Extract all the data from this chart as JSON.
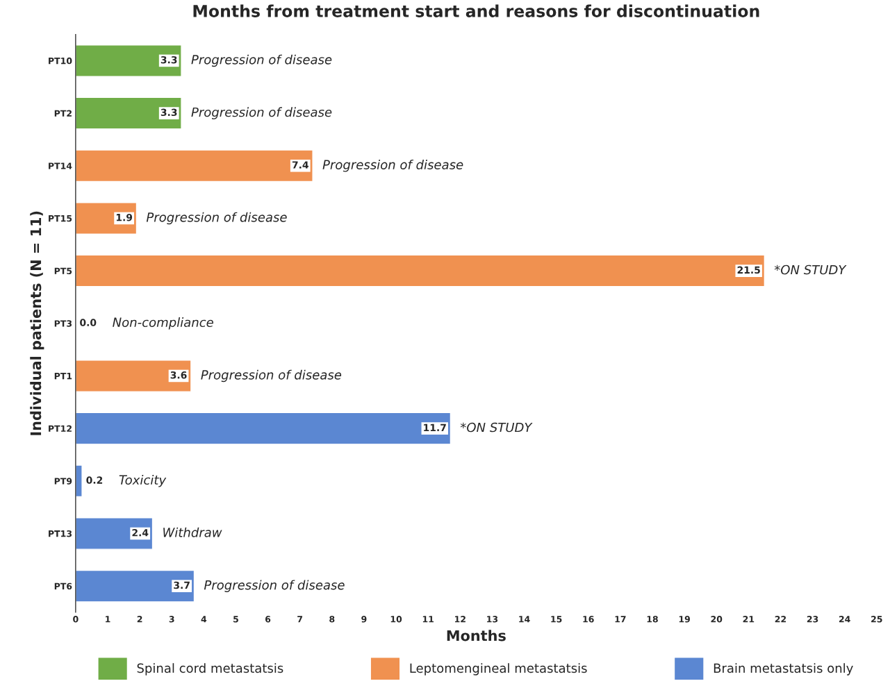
{
  "chart_data": {
    "type": "bar",
    "orientation": "horizontal",
    "title": "Months from treatment start and reasons for discontinuation",
    "xlabel": "Months",
    "ylabel": "Individual patients (N = 11)",
    "categories": [
      "PT10",
      "PT2",
      "PT14",
      "PT15",
      "PT5",
      "PT3",
      "PT1",
      "PT12",
      "PT9",
      "PT13",
      "PT6"
    ],
    "series": [
      {
        "name": "Spinal cord metastatsis",
        "color": "#70ad47",
        "values": [
          3.3,
          3.3,
          null,
          null,
          null,
          null,
          null,
          null,
          null,
          null,
          null
        ],
        "value_labels": [
          "3.3",
          "3.3",
          null,
          null,
          null,
          null,
          null,
          null,
          null,
          null,
          null
        ]
      },
      {
        "name": "Leptomengineal metastatsis",
        "color": "#f09150",
        "values": [
          null,
          null,
          7.4,
          1.9,
          21.5,
          0.0,
          3.6,
          null,
          null,
          null,
          null
        ],
        "value_labels": [
          null,
          null,
          "7.4",
          "1.9",
          "21.5",
          "0.0",
          "3.6",
          null,
          null,
          null,
          null
        ]
      },
      {
        "name": "Brain metastatsis only",
        "color": "#5b87d2",
        "values": [
          null,
          null,
          null,
          null,
          null,
          null,
          null,
          11.7,
          0.2,
          2.4,
          3.7
        ],
        "value_labels": [
          null,
          null,
          null,
          null,
          null,
          null,
          null,
          "11.7",
          "0.2",
          "2.4",
          "3.7"
        ]
      }
    ],
    "annotations": [
      {
        "text": "Progression of disease",
        "x": 3.3,
        "y": "PT10"
      },
      {
        "text": "Progression of disease",
        "x": 3.3,
        "y": "PT2"
      },
      {
        "text": "Progression of disease",
        "x": 7.4,
        "y": "PT14"
      },
      {
        "text": "Progression of disease",
        "x": 1.9,
        "y": "PT15"
      },
      {
        "text": "*ON STUDY",
        "x": 21.5,
        "y": "PT5"
      },
      {
        "text": "Non-compliance",
        "x": 0.0,
        "y": "PT3"
      },
      {
        "text": "Progression of disease",
        "x": 3.6,
        "y": "PT1"
      },
      {
        "text": "*ON STUDY",
        "x": 11.7,
        "y": "PT12"
      },
      {
        "text": "Toxicity",
        "x": 0.2,
        "y": "PT9"
      },
      {
        "text": "Withdraw",
        "x": 2.4,
        "y": "PT13"
      },
      {
        "text": "Progression of disease",
        "x": 3.7,
        "y": "PT6"
      }
    ],
    "xlim": [
      0,
      25
    ],
    "xticks": [
      0,
      1,
      2,
      3,
      4,
      5,
      6,
      7,
      8,
      9,
      10,
      11,
      12,
      13,
      14,
      15,
      16,
      17,
      18,
      19,
      20,
      21,
      22,
      23,
      24,
      25
    ],
    "grid": false,
    "legend": "bottom"
  }
}
